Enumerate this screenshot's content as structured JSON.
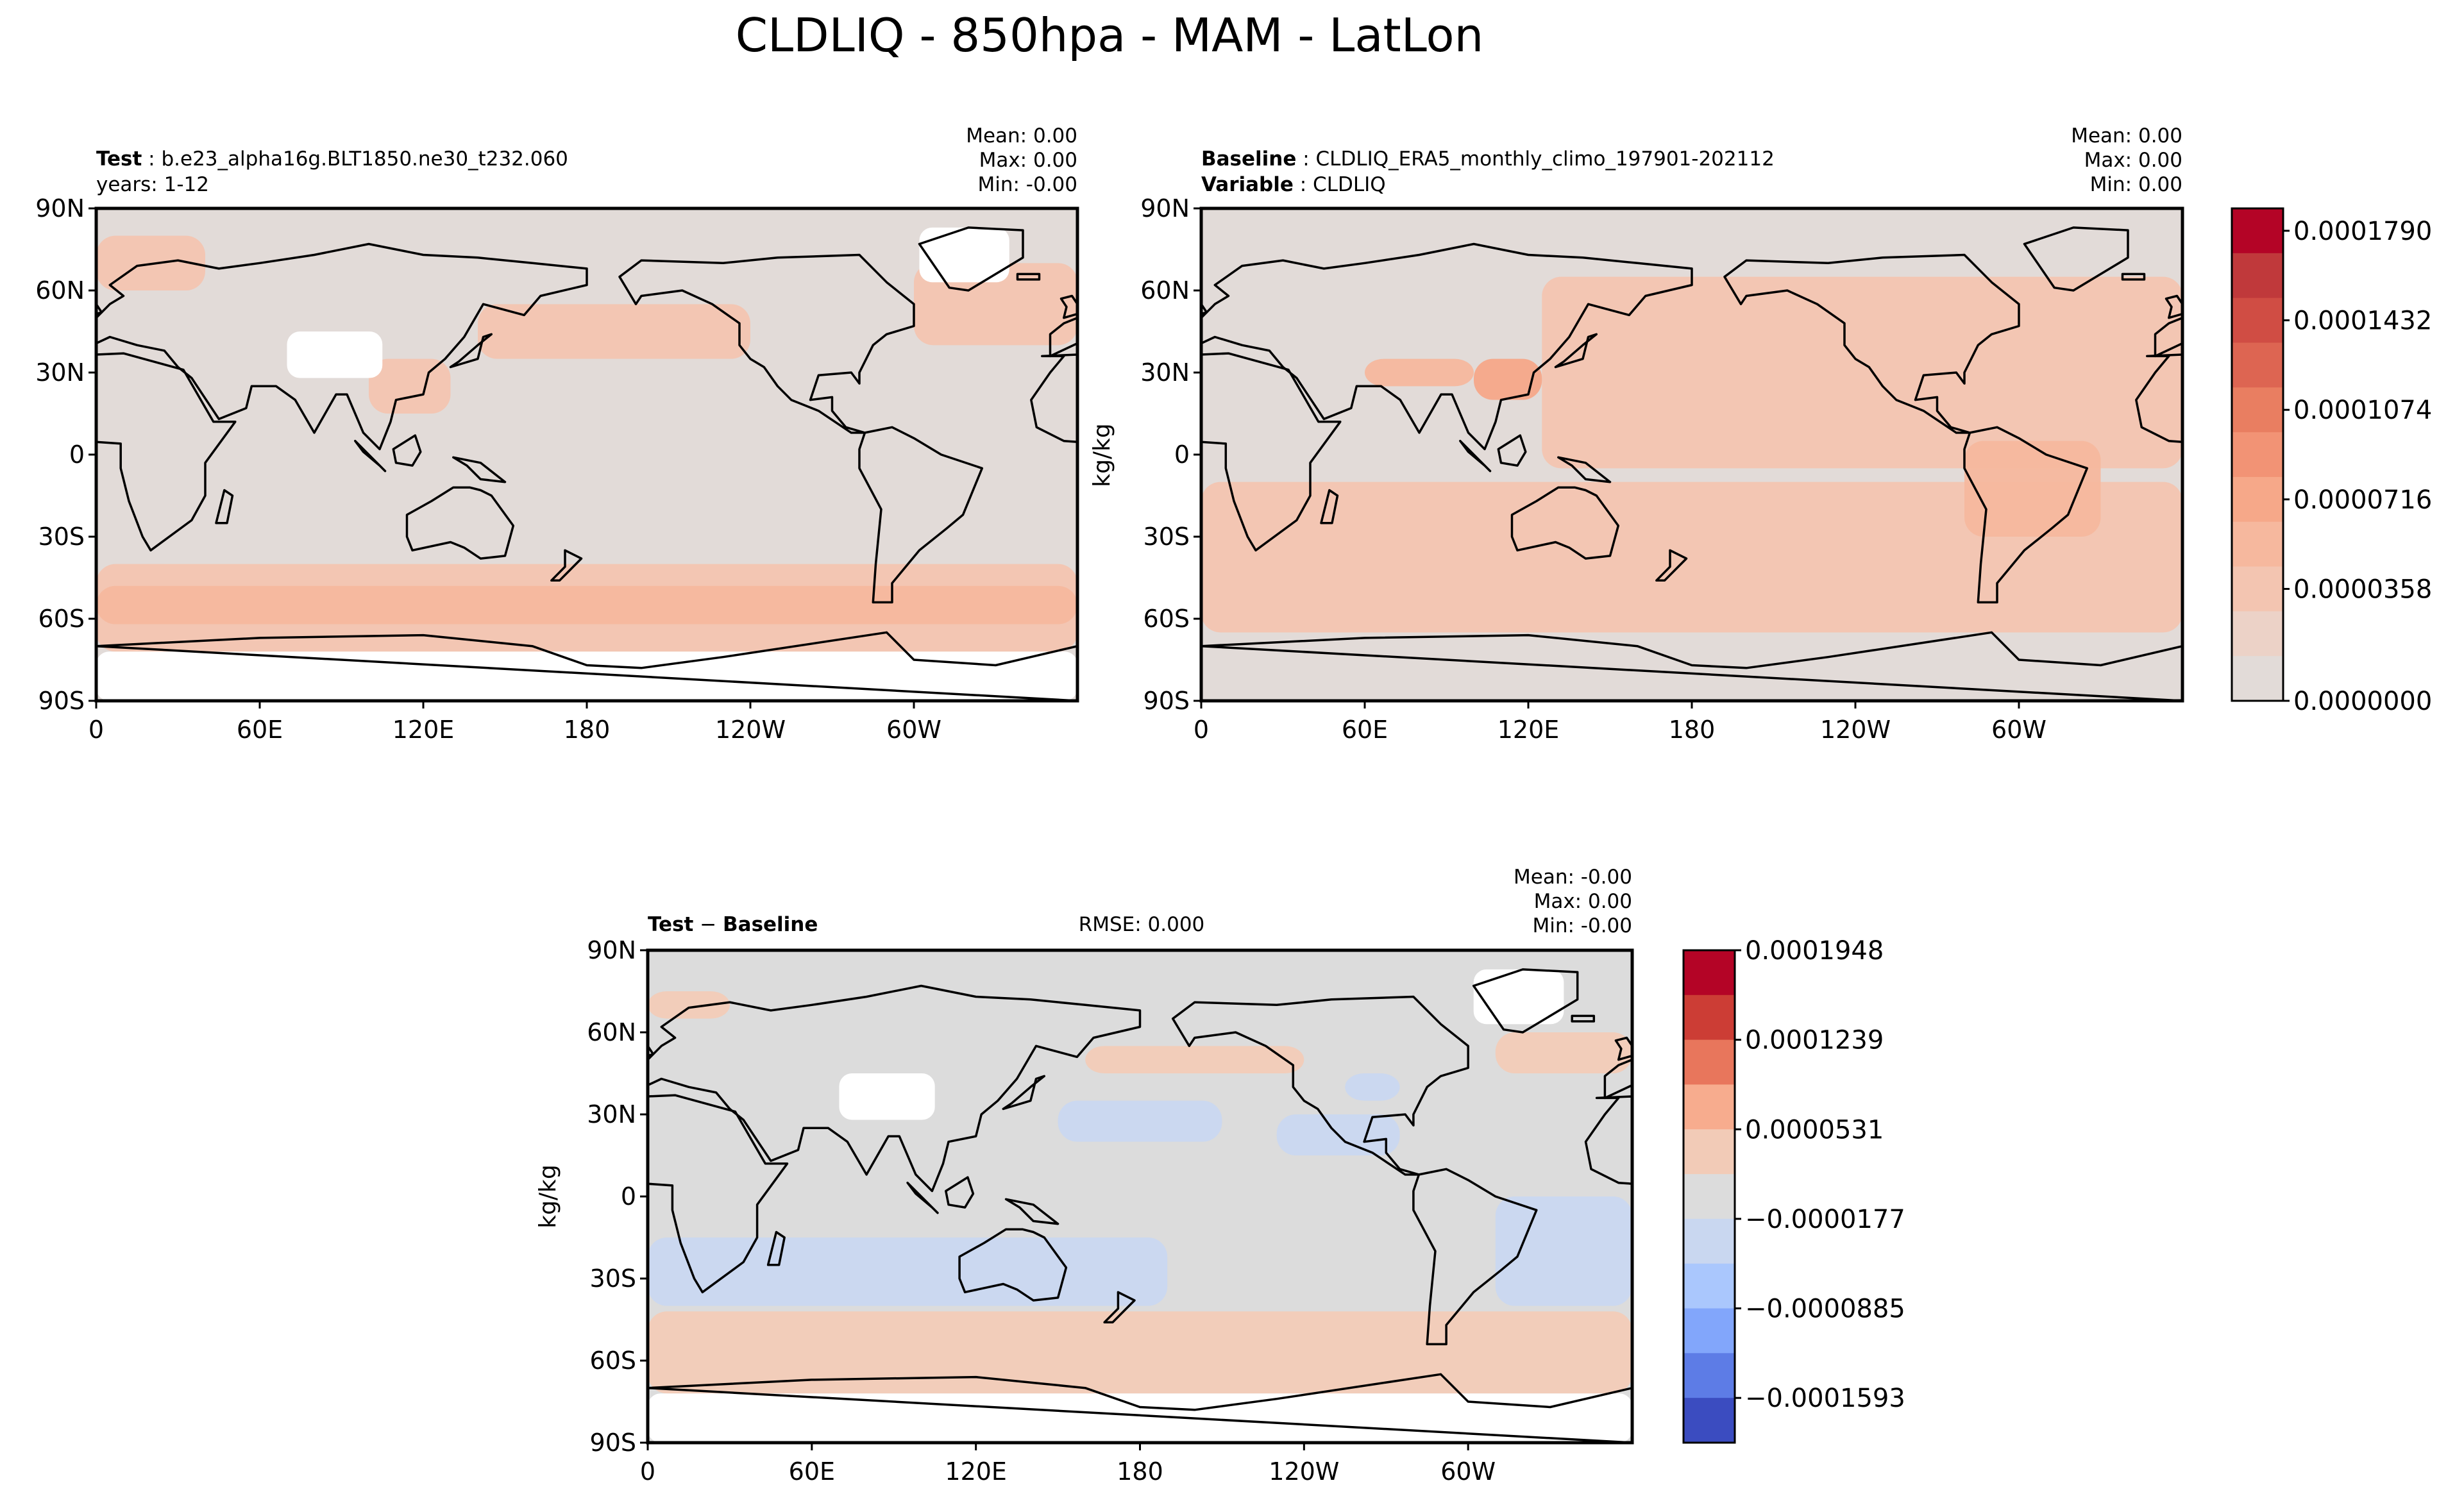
{
  "figure_title": "CLDLIQ - 850hpa - MAM - LatLon",
  "colors": {
    "land_bg": "#e2dbd8",
    "diff_bg": "#dcdcdc",
    "missing": "#ffffff",
    "coast": "#000000",
    "seq": [
      "#e2dbd8",
      "#ecd2c7",
      "#f3c5b1",
      "#f6b89e",
      "#f6a889",
      "#f29375",
      "#e97e61",
      "#dd6552",
      "#d04d44",
      "#c0393b",
      "#b40426"
    ],
    "div": [
      "#3b4cc0",
      "#5d7ce6",
      "#82a6fb",
      "#aac7fd",
      "#c9d7f0",
      "#dcdcdc",
      "#f2cbb7",
      "#f7ac8e",
      "#e8765c",
      "#cc3d35",
      "#b40426"
    ]
  },
  "chart_data": [
    {
      "type": "heatmap",
      "panel": "test",
      "header": {
        "label": "Test",
        "case": "b.e23_alpha16g.BLT1850.ne30_t232.060",
        "years": "years: 1-12"
      },
      "stats": {
        "mean": "Mean:  0.00",
        "max": "Max:  0.00",
        "min": "Min: -0.00"
      },
      "xticks": [
        "0",
        "60E",
        "120E",
        "180",
        "120W",
        "60W"
      ],
      "yticks": [
        "90N",
        "60N",
        "30N",
        "0",
        "30S",
        "60S",
        "90S"
      ],
      "xlim": [
        0,
        360
      ],
      "ylim": [
        -90,
        90
      ],
      "fields": [
        {
          "lon": [
            0,
            360
          ],
          "lat": [
            -72,
            -40
          ],
          "level": 2,
          "note": "southern ocean band"
        },
        {
          "lon": [
            0,
            360
          ],
          "lat": [
            -62,
            -48
          ],
          "level": 3
        },
        {
          "lon": [
            140,
            240
          ],
          "lat": [
            35,
            55
          ],
          "level": 2,
          "note": "north pacific"
        },
        {
          "lon": [
            300,
            360
          ],
          "lat": [
            40,
            70
          ],
          "level": 2,
          "note": "north atlantic"
        },
        {
          "lon": [
            0,
            40
          ],
          "lat": [
            60,
            80
          ],
          "level": 2
        },
        {
          "lon": [
            100,
            130
          ],
          "lat": [
            15,
            35
          ],
          "level": 2
        }
      ],
      "missing_regions": [
        {
          "lon": [
            0,
            360
          ],
          "lat": [
            -90,
            -72
          ],
          "note": "antarctica"
        },
        {
          "lon": [
            70,
            105
          ],
          "lat": [
            28,
            45
          ],
          "note": "tibet"
        },
        {
          "lon": [
            302,
            335
          ],
          "lat": [
            63,
            83
          ],
          "note": "greenland"
        }
      ]
    },
    {
      "type": "heatmap",
      "panel": "baseline",
      "header": {
        "label": "Baseline",
        "case": "CLDLIQ_ERA5_monthly_climo_197901-202112",
        "variable_label": "Variable",
        "variable": "CLDLIQ"
      },
      "stats": {
        "mean": "Mean:  0.00",
        "max": "Max:  0.00",
        "min": "Min:  0.00"
      },
      "ylabel": "kg/kg",
      "xticks": [
        "0",
        "60E",
        "120E",
        "180",
        "120W",
        "60W"
      ],
      "yticks": [
        "90N",
        "60N",
        "30N",
        "0",
        "30S",
        "60S",
        "90S"
      ],
      "xlim": [
        0,
        360
      ],
      "ylim": [
        -90,
        90
      ],
      "fields": [
        {
          "lon": [
            0,
            360
          ],
          "lat": [
            -65,
            -10
          ],
          "level": 2,
          "note": "southern hemisphere ocean"
        },
        {
          "lon": [
            125,
            360
          ],
          "lat": [
            -5,
            65
          ],
          "level": 2,
          "note": "north pacific/atlantic"
        },
        {
          "lon": [
            280,
            330
          ],
          "lat": [
            -30,
            5
          ],
          "level": 3,
          "note": "south america"
        },
        {
          "lon": [
            100,
            125
          ],
          "lat": [
            20,
            35
          ],
          "level": 4
        },
        {
          "lon": [
            60,
            100
          ],
          "lat": [
            25,
            35
          ],
          "level": 3
        }
      ],
      "colorbar": {
        "ticks": [
          "0.0000000",
          "0.0000358",
          "0.0000716",
          "0.0001074",
          "0.0001432",
          "0.0001790"
        ],
        "levels": 11
      }
    },
    {
      "type": "heatmap",
      "panel": "difference",
      "header": {
        "label_a": "Test",
        "op": "−",
        "label_b": "Baseline"
      },
      "rmse": "RMSE: 0.000",
      "stats": {
        "mean": "Mean: -0.00",
        "max": "Max:  0.00",
        "min": "Min: -0.00"
      },
      "ylabel": "kg/kg",
      "xticks": [
        "0",
        "60E",
        "120E",
        "180",
        "120W",
        "60W"
      ],
      "yticks": [
        "90N",
        "60N",
        "30N",
        "0",
        "30S",
        "60S",
        "90S"
      ],
      "xlim": [
        0,
        360
      ],
      "ylim": [
        -90,
        90
      ],
      "fields": [
        {
          "lon": [
            0,
            360
          ],
          "lat": [
            -72,
            -42
          ],
          "level": 6,
          "note": "southern ocean positive band"
        },
        {
          "lon": [
            0,
            190
          ],
          "lat": [
            -40,
            -15
          ],
          "level": 4,
          "note": "negative"
        },
        {
          "lon": [
            310,
            360
          ],
          "lat": [
            -40,
            0
          ],
          "level": 4
        },
        {
          "lon": [
            150,
            210
          ],
          "lat": [
            20,
            35
          ],
          "level": 4
        },
        {
          "lon": [
            230,
            275
          ],
          "lat": [
            15,
            30
          ],
          "level": 4
        },
        {
          "lon": [
            255,
            275
          ],
          "lat": [
            35,
            45
          ],
          "level": 4
        },
        {
          "lon": [
            160,
            240
          ],
          "lat": [
            45,
            55
          ],
          "level": 6
        },
        {
          "lon": [
            310,
            360
          ],
          "lat": [
            45,
            60
          ],
          "level": 6
        },
        {
          "lon": [
            0,
            30
          ],
          "lat": [
            65,
            75
          ],
          "level": 6
        }
      ],
      "missing_regions": [
        {
          "lon": [
            0,
            360
          ],
          "lat": [
            -90,
            -72
          ],
          "note": "antarctica"
        },
        {
          "lon": [
            70,
            105
          ],
          "lat": [
            28,
            45
          ],
          "note": "tibet"
        },
        {
          "lon": [
            302,
            335
          ],
          "lat": [
            63,
            83
          ],
          "note": "greenland"
        }
      ],
      "colorbar": {
        "ticks": [
          "0.0001948",
          "0.0001239",
          "0.0000531",
          "−0.0000177",
          "−0.0000885",
          "−0.0001593"
        ],
        "levels": 11
      }
    }
  ],
  "coastline_hint": "approximate continents (lon 0-360, lat)",
  "continents": [
    {
      "name": "africa",
      "pts": [
        [
          347,
          36
        ],
        [
          10,
          37
        ],
        [
          32,
          31
        ],
        [
          43,
          12
        ],
        [
          51,
          12
        ],
        [
          40,
          -3
        ],
        [
          40,
          -15
        ],
        [
          35,
          -24
        ],
        [
          20,
          -35
        ],
        [
          17,
          -30
        ],
        [
          12,
          -17
        ],
        [
          9,
          -5
        ],
        [
          9,
          4
        ],
        [
          -5,
          5
        ],
        [
          -15,
          10
        ],
        [
          -17,
          20
        ],
        [
          -10,
          30
        ],
        [
          -5,
          36
        ]
      ]
    },
    {
      "name": "eurasia",
      "pts": [
        [
          -10,
          36
        ],
        [
          -10,
          44
        ],
        [
          -5,
          48
        ],
        [
          0,
          50
        ],
        [
          5,
          55
        ],
        [
          10,
          58
        ],
        [
          5,
          62
        ],
        [
          15,
          69
        ],
        [
          30,
          71
        ],
        [
          45,
          68
        ],
        [
          60,
          70
        ],
        [
          80,
          73
        ],
        [
          100,
          77
        ],
        [
          120,
          73
        ],
        [
          140,
          72
        ],
        [
          160,
          70
        ],
        [
          180,
          68
        ],
        [
          180,
          62
        ],
        [
          163,
          58
        ],
        [
          157,
          51
        ],
        [
          142,
          55
        ],
        [
          135,
          43
        ],
        [
          128,
          35
        ],
        [
          122,
          30
        ],
        [
          120,
          22
        ],
        [
          110,
          20
        ],
        [
          108,
          12
        ],
        [
          104,
          2
        ],
        [
          98,
          8
        ],
        [
          92,
          22
        ],
        [
          88,
          22
        ],
        [
          80,
          8
        ],
        [
          73,
          20
        ],
        [
          66,
          25
        ],
        [
          57,
          25
        ],
        [
          55,
          17
        ],
        [
          45,
          13
        ],
        [
          35,
          28
        ],
        [
          30,
          32
        ],
        [
          25,
          38
        ],
        [
          15,
          40
        ],
        [
          5,
          43
        ]
      ]
    },
    {
      "name": "north_america",
      "pts": [
        [
          192,
          65
        ],
        [
          200,
          71
        ],
        [
          230,
          70
        ],
        [
          250,
          72
        ],
        [
          280,
          73
        ],
        [
          290,
          63
        ],
        [
          300,
          55
        ],
        [
          300,
          47
        ],
        [
          290,
          44
        ],
        [
          285,
          40
        ],
        [
          280,
          30
        ],
        [
          280,
          26
        ],
        [
          277,
          30
        ],
        [
          265,
          29
        ],
        [
          262,
          20
        ],
        [
          270,
          21
        ],
        [
          270,
          16
        ],
        [
          275,
          10
        ],
        [
          282,
          8
        ],
        [
          277,
          8
        ],
        [
          265,
          16
        ],
        [
          255,
          20
        ],
        [
          250,
          25
        ],
        [
          245,
          32
        ],
        [
          240,
          35
        ],
        [
          236,
          40
        ],
        [
          236,
          48
        ],
        [
          226,
          55
        ],
        [
          215,
          60
        ],
        [
          200,
          58
        ],
        [
          198,
          55
        ],
        [
          195,
          60
        ]
      ]
    },
    {
      "name": "south_america",
      "pts": [
        [
          282,
          8
        ],
        [
          292,
          10
        ],
        [
          300,
          6
        ],
        [
          310,
          0
        ],
        [
          325,
          -5
        ],
        [
          318,
          -22
        ],
        [
          312,
          -27
        ],
        [
          302,
          -35
        ],
        [
          292,
          -47
        ],
        [
          292,
          -54
        ],
        [
          285,
          -54
        ],
        [
          286,
          -40
        ],
        [
          288,
          -20
        ],
        [
          280,
          -5
        ],
        [
          280,
          2
        ]
      ]
    },
    {
      "name": "australia",
      "pts": [
        [
          114,
          -22
        ],
        [
          123,
          -17
        ],
        [
          131,
          -12
        ],
        [
          137,
          -12
        ],
        [
          141,
          -13
        ],
        [
          145,
          -15
        ],
        [
          153,
          -26
        ],
        [
          150,
          -37
        ],
        [
          141,
          -38
        ],
        [
          135,
          -34
        ],
        [
          130,
          -32
        ],
        [
          116,
          -35
        ],
        [
          114,
          -30
        ]
      ]
    },
    {
      "name": "greenland",
      "pts": [
        [
          302,
          77
        ],
        [
          320,
          83
        ],
        [
          340,
          82
        ],
        [
          340,
          72
        ],
        [
          320,
          60
        ],
        [
          313,
          61
        ]
      ]
    },
    {
      "name": "antarctica",
      "pts": [
        [
          0,
          -70
        ],
        [
          60,
          -67
        ],
        [
          120,
          -66
        ],
        [
          160,
          -70
        ],
        [
          180,
          -77
        ],
        [
          200,
          -78
        ],
        [
          230,
          -74
        ],
        [
          290,
          -65
        ],
        [
          300,
          -75
        ],
        [
          330,
          -77
        ],
        [
          360,
          -70
        ],
        [
          360,
          -90
        ],
        [
          0,
          -90
        ]
      ]
    },
    {
      "name": "madagascar",
      "pts": [
        [
          44,
          -25
        ],
        [
          47,
          -13
        ],
        [
          50,
          -15
        ],
        [
          48,
          -25
        ]
      ]
    },
    {
      "name": "japan",
      "pts": [
        [
          130,
          32
        ],
        [
          140,
          35
        ],
        [
          142,
          43
        ],
        [
          145,
          44
        ],
        [
          140,
          40
        ],
        [
          133,
          34
        ]
      ]
    },
    {
      "name": "borneo",
      "pts": [
        [
          109,
          2
        ],
        [
          117,
          7
        ],
        [
          119,
          1
        ],
        [
          116,
          -4
        ],
        [
          110,
          -3
        ]
      ]
    },
    {
      "name": "sumatra",
      "pts": [
        [
          95,
          5
        ],
        [
          106,
          -6
        ],
        [
          104,
          -4
        ],
        [
          98,
          1
        ]
      ]
    },
    {
      "name": "new_guinea",
      "pts": [
        [
          131,
          -1
        ],
        [
          141,
          -3
        ],
        [
          150,
          -10
        ],
        [
          141,
          -9
        ],
        [
          136,
          -4
        ]
      ]
    },
    {
      "name": "new_zealand",
      "pts": [
        [
          172,
          -35
        ],
        [
          178,
          -38
        ],
        [
          175,
          -41
        ],
        [
          170,
          -46
        ],
        [
          167,
          -46
        ],
        [
          172,
          -41
        ]
      ]
    },
    {
      "name": "uk",
      "pts": [
        [
          -5,
          50
        ],
        [
          2,
          52
        ],
        [
          -2,
          58
        ],
        [
          -6,
          57
        ],
        [
          -4,
          54
        ]
      ]
    },
    {
      "name": "iceland",
      "pts": [
        [
          338,
          64
        ],
        [
          346,
          64
        ],
        [
          346,
          66
        ],
        [
          338,
          66
        ]
      ]
    }
  ]
}
